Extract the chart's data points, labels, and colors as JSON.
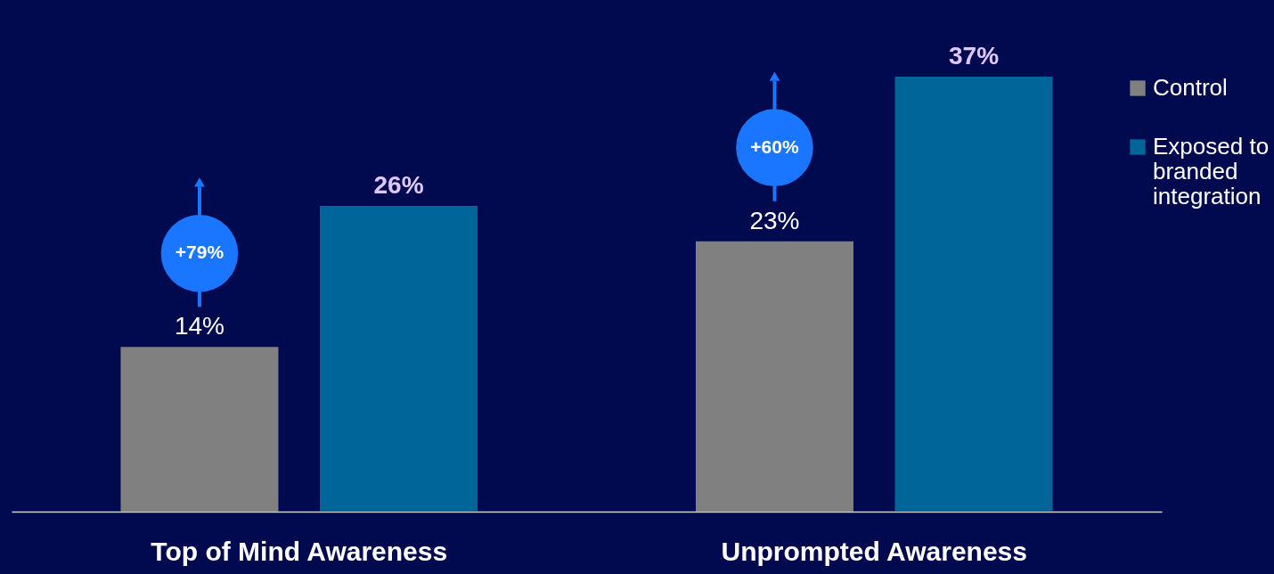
{
  "chart_data": {
    "type": "bar",
    "categories": [
      "Top of Mind Awareness",
      "Unprompted Awareness"
    ],
    "series": [
      {
        "name": "Control",
        "color": "#808080",
        "values": [
          14,
          23
        ],
        "value_labels": [
          "14%",
          "23%"
        ]
      },
      {
        "name": "Exposed to branded integration",
        "color": "#006699",
        "values": [
          26,
          37
        ],
        "value_labels": [
          "26%",
          "37%"
        ]
      }
    ],
    "legend": "right",
    "grid": false,
    "annotations": [
      "+79%",
      "+60%"
    ]
  }
}
